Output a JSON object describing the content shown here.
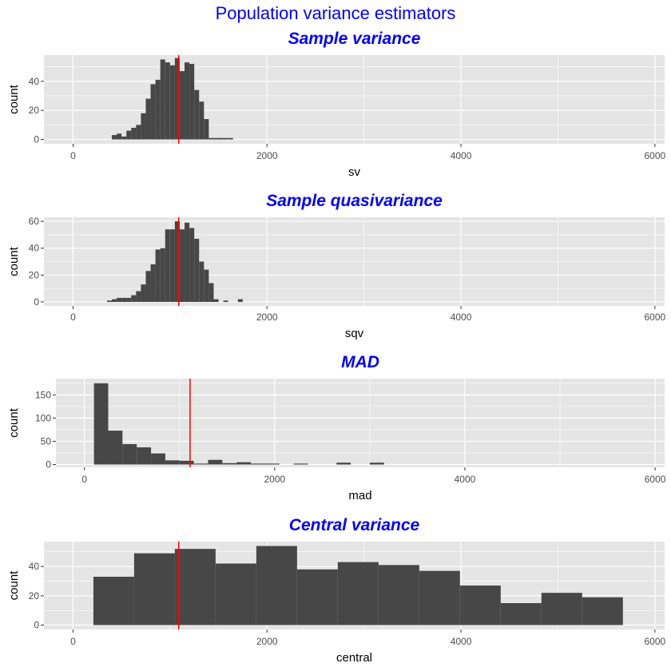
{
  "figure_title": "Population variance estimators",
  "colors": {
    "title": "#0000ff",
    "panel": "#e5e5e5",
    "grid": "#ffffff",
    "bar": "#474747",
    "refline": "#ff0000"
  },
  "chart_data": [
    {
      "type": "bar",
      "title": "Sample variance",
      "xlabel": "sv",
      "ylabel": "count",
      "xlim": [
        -300,
        6100
      ],
      "ylim": [
        -3,
        58
      ],
      "xticks": [
        0,
        2000,
        4000,
        6000
      ],
      "xtick_labels": [
        "0",
        "2000",
        "4000",
        "6000"
      ],
      "yticks": [
        0,
        20,
        40
      ],
      "ytick_labels": [
        "0",
        "20",
        "40"
      ],
      "grid": true,
      "reference_line_x": 1090,
      "bins": [
        {
          "x0": 400,
          "x1": 450,
          "count": 3
        },
        {
          "x0": 450,
          "x1": 500,
          "count": 4
        },
        {
          "x0": 500,
          "x1": 550,
          "count": 2
        },
        {
          "x0": 550,
          "x1": 600,
          "count": 6
        },
        {
          "x0": 600,
          "x1": 650,
          "count": 8
        },
        {
          "x0": 650,
          "x1": 700,
          "count": 10
        },
        {
          "x0": 700,
          "x1": 750,
          "count": 18
        },
        {
          "x0": 750,
          "x1": 800,
          "count": 28
        },
        {
          "x0": 800,
          "x1": 850,
          "count": 38
        },
        {
          "x0": 850,
          "x1": 900,
          "count": 41
        },
        {
          "x0": 900,
          "x1": 950,
          "count": 55
        },
        {
          "x0": 950,
          "x1": 1000,
          "count": 53
        },
        {
          "x0": 1000,
          "x1": 1050,
          "count": 51
        },
        {
          "x0": 1050,
          "x1": 1100,
          "count": 56
        },
        {
          "x0": 1100,
          "x1": 1150,
          "count": 47
        },
        {
          "x0": 1150,
          "x1": 1200,
          "count": 53
        },
        {
          "x0": 1200,
          "x1": 1250,
          "count": 52
        },
        {
          "x0": 1250,
          "x1": 1300,
          "count": 34
        },
        {
          "x0": 1300,
          "x1": 1350,
          "count": 26
        },
        {
          "x0": 1350,
          "x1": 1400,
          "count": 14
        },
        {
          "x0": 1400,
          "x1": 1450,
          "count": 1
        },
        {
          "x0": 1450,
          "x1": 1500,
          "count": 1
        },
        {
          "x0": 1500,
          "x1": 1550,
          "count": 1
        },
        {
          "x0": 1550,
          "x1": 1600,
          "count": 1
        },
        {
          "x0": 1600,
          "x1": 1650,
          "count": 1
        }
      ]
    },
    {
      "type": "bar",
      "title": "Sample quasivariance",
      "xlabel": "sqv",
      "ylabel": "count",
      "xlim": [
        -300,
        6100
      ],
      "ylim": [
        -3,
        63
      ],
      "xticks": [
        0,
        2000,
        4000,
        6000
      ],
      "xtick_labels": [
        "0",
        "2000",
        "4000",
        "6000"
      ],
      "yticks": [
        0,
        20,
        40,
        60
      ],
      "ytick_labels": [
        "0",
        "20",
        "40",
        "60"
      ],
      "grid": true,
      "reference_line_x": 1090,
      "bins": [
        {
          "x0": 350,
          "x1": 400,
          "count": 1
        },
        {
          "x0": 400,
          "x1": 450,
          "count": 2
        },
        {
          "x0": 450,
          "x1": 500,
          "count": 3
        },
        {
          "x0": 500,
          "x1": 550,
          "count": 3
        },
        {
          "x0": 550,
          "x1": 600,
          "count": 3
        },
        {
          "x0": 600,
          "x1": 650,
          "count": 5
        },
        {
          "x0": 650,
          "x1": 700,
          "count": 8
        },
        {
          "x0": 700,
          "x1": 750,
          "count": 13
        },
        {
          "x0": 750,
          "x1": 800,
          "count": 23
        },
        {
          "x0": 800,
          "x1": 850,
          "count": 28
        },
        {
          "x0": 850,
          "x1": 900,
          "count": 39
        },
        {
          "x0": 900,
          "x1": 950,
          "count": 40
        },
        {
          "x0": 950,
          "x1": 1000,
          "count": 54
        },
        {
          "x0": 1000,
          "x1": 1050,
          "count": 54
        },
        {
          "x0": 1050,
          "x1": 1100,
          "count": 60
        },
        {
          "x0": 1100,
          "x1": 1150,
          "count": 54
        },
        {
          "x0": 1150,
          "x1": 1200,
          "count": 59
        },
        {
          "x0": 1200,
          "x1": 1250,
          "count": 55
        },
        {
          "x0": 1250,
          "x1": 1300,
          "count": 47
        },
        {
          "x0": 1300,
          "x1": 1350,
          "count": 30
        },
        {
          "x0": 1350,
          "x1": 1400,
          "count": 24
        },
        {
          "x0": 1400,
          "x1": 1450,
          "count": 14
        },
        {
          "x0": 1450,
          "x1": 1500,
          "count": 2
        },
        {
          "x0": 1550,
          "x1": 1600,
          "count": 1
        },
        {
          "x0": 1700,
          "x1": 1750,
          "count": 2
        }
      ]
    },
    {
      "type": "bar",
      "title": "MAD",
      "xlabel": "mad",
      "ylabel": "count",
      "xlim": [
        -300,
        6100
      ],
      "ylim": [
        -6,
        185
      ],
      "xticks": [
        0,
        2000,
        4000,
        6000
      ],
      "xtick_labels": [
        "0",
        "2000",
        "4000",
        "6000"
      ],
      "yticks": [
        0,
        50,
        100,
        150
      ],
      "ytick_labels": [
        "0",
        "50",
        "100",
        "150"
      ],
      "grid": true,
      "reference_line_x": 1110,
      "bins": [
        {
          "x0": 100,
          "x1": 250,
          "count": 175
        },
        {
          "x0": 250,
          "x1": 400,
          "count": 73
        },
        {
          "x0": 400,
          "x1": 550,
          "count": 44
        },
        {
          "x0": 550,
          "x1": 700,
          "count": 37
        },
        {
          "x0": 700,
          "x1": 850,
          "count": 24
        },
        {
          "x0": 850,
          "x1": 1000,
          "count": 9
        },
        {
          "x0": 1000,
          "x1": 1150,
          "count": 8
        },
        {
          "x0": 1150,
          "x1": 1300,
          "count": 2
        },
        {
          "x0": 1300,
          "x1": 1450,
          "count": 10
        },
        {
          "x0": 1450,
          "x1": 1600,
          "count": 3
        },
        {
          "x0": 1600,
          "x1": 1750,
          "count": 5
        },
        {
          "x0": 1750,
          "x1": 1900,
          "count": 2
        },
        {
          "x0": 1900,
          "x1": 2050,
          "count": 2
        },
        {
          "x0": 2200,
          "x1": 2350,
          "count": 2
        },
        {
          "x0": 2650,
          "x1": 2800,
          "count": 4
        },
        {
          "x0": 3000,
          "x1": 3150,
          "count": 4
        }
      ]
    },
    {
      "type": "bar",
      "title": "Central variance",
      "xlabel": "central",
      "ylabel": "count",
      "xlim": [
        -300,
        6100
      ],
      "ylim": [
        -3,
        57
      ],
      "xticks": [
        0,
        2000,
        4000,
        6000
      ],
      "xtick_labels": [
        "0",
        "2000",
        "4000",
        "6000"
      ],
      "yticks": [
        0,
        20,
        40
      ],
      "ytick_labels": [
        "0",
        "20",
        "40"
      ],
      "grid": true,
      "reference_line_x": 1090,
      "bins": [
        {
          "x0": 210,
          "x1": 630,
          "count": 33
        },
        {
          "x0": 630,
          "x1": 1050,
          "count": 49
        },
        {
          "x0": 1050,
          "x1": 1470,
          "count": 52
        },
        {
          "x0": 1470,
          "x1": 1890,
          "count": 42
        },
        {
          "x0": 1890,
          "x1": 2310,
          "count": 54
        },
        {
          "x0": 2310,
          "x1": 2730,
          "count": 38
        },
        {
          "x0": 2730,
          "x1": 3150,
          "count": 43
        },
        {
          "x0": 3150,
          "x1": 3570,
          "count": 41
        },
        {
          "x0": 3570,
          "x1": 3990,
          "count": 37
        },
        {
          "x0": 3990,
          "x1": 4410,
          "count": 27
        },
        {
          "x0": 4410,
          "x1": 4830,
          "count": 15
        },
        {
          "x0": 4830,
          "x1": 5250,
          "count": 22
        },
        {
          "x0": 5250,
          "x1": 5670,
          "count": 19
        }
      ]
    }
  ]
}
